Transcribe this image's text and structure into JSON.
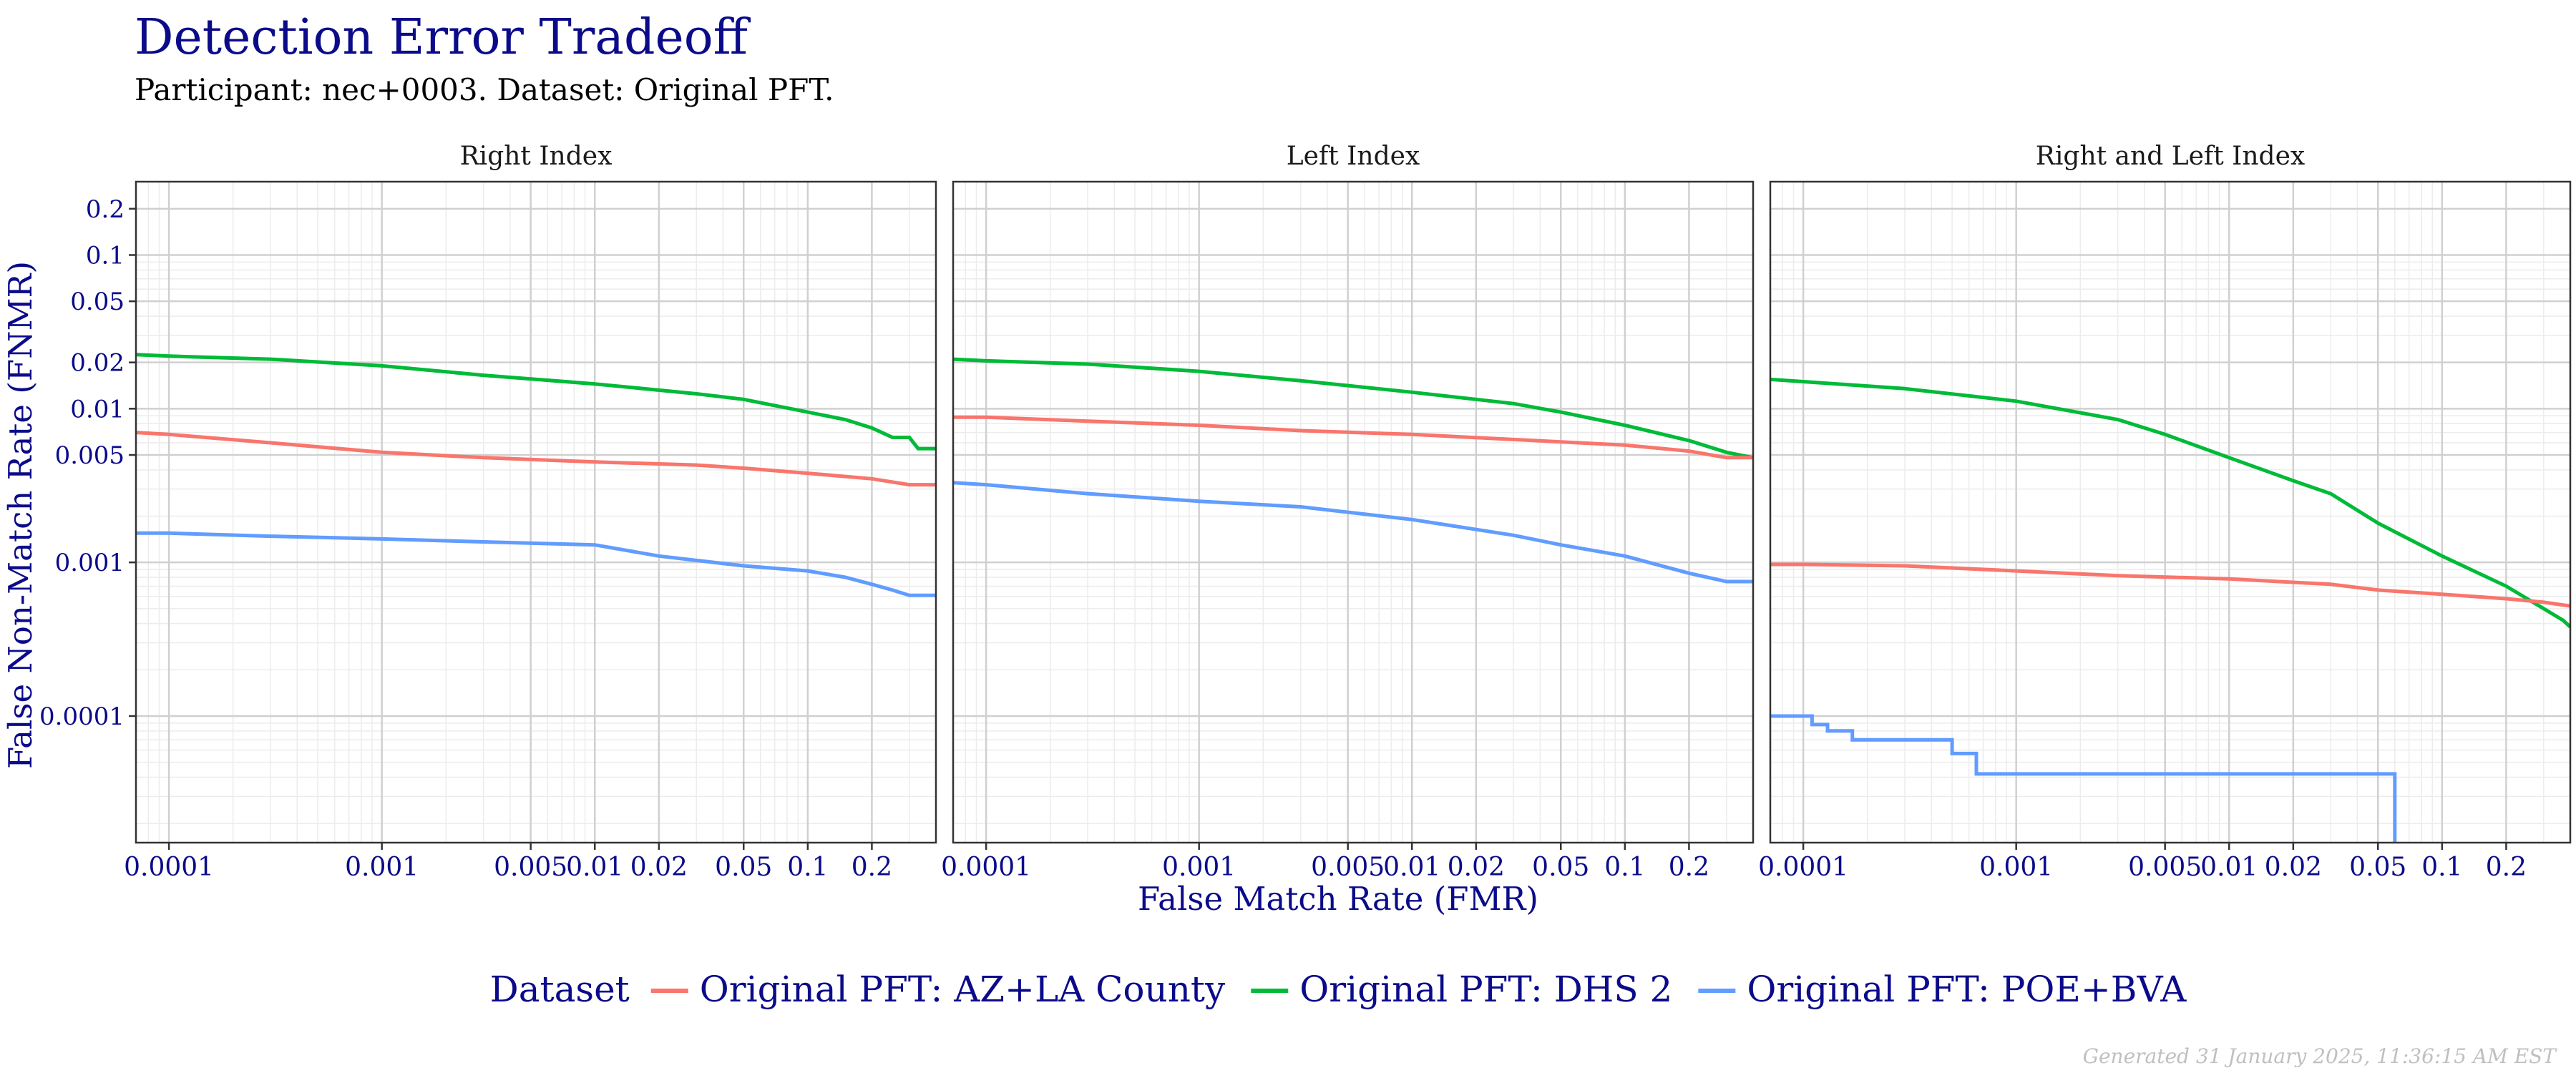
{
  "title": "Detection Error Tradeoff",
  "subtitle": "Participant: nec+0003. Dataset: Original PFT.",
  "footer": "Generated 31 January 2025, 11:36:15 AM EST",
  "colors": {
    "title": "#0b0b8a",
    "panel_border": "#333333",
    "grid_major": "#d0d0d0",
    "grid_minor": "#ececec"
  },
  "chart_data": {
    "type": "line",
    "x_scale": "log",
    "y_scale": "log",
    "xlabel": "False Match Rate (FMR)",
    "ylabel": "False Non-Match Rate (FNMR)",
    "xlim": [
      7e-05,
      0.4
    ],
    "ylim": [
      1.5e-05,
      0.3
    ],
    "x_ticks": [
      {
        "v": 0.0001,
        "label": "0.0001"
      },
      {
        "v": 0.001,
        "label": "0.001"
      },
      {
        "v": 0.005,
        "label": "0.005"
      },
      {
        "v": 0.01,
        "label": "0.01"
      },
      {
        "v": 0.02,
        "label": "0.02"
      },
      {
        "v": 0.05,
        "label": "0.05"
      },
      {
        "v": 0.1,
        "label": "0.1"
      },
      {
        "v": 0.2,
        "label": "0.2"
      }
    ],
    "y_ticks": [
      {
        "v": 0.0001,
        "label": "0.0001"
      },
      {
        "v": 0.001,
        "label": "0.001"
      },
      {
        "v": 0.005,
        "label": "0.005"
      },
      {
        "v": 0.01,
        "label": "0.01"
      },
      {
        "v": 0.02,
        "label": "0.02"
      },
      {
        "v": 0.05,
        "label": "0.05"
      },
      {
        "v": 0.1,
        "label": "0.1"
      },
      {
        "v": 0.2,
        "label": "0.2"
      }
    ],
    "legend": {
      "title": "Dataset",
      "position": "bottom",
      "items": [
        {
          "label": "Original PFT: AZ+LA County",
          "color": "#f8766d"
        },
        {
          "label": "Original PFT: DHS 2",
          "color": "#00ba38"
        },
        {
          "label": "Original PFT: POE+BVA",
          "color": "#619cff"
        }
      ]
    },
    "panels": [
      {
        "title": "Right Index",
        "series": [
          {
            "name": "Original PFT: DHS 2",
            "color": "#00ba38",
            "points": [
              [
                7e-05,
                0.0225
              ],
              [
                0.0001,
                0.022
              ],
              [
                0.0003,
                0.021
              ],
              [
                0.001,
                0.019
              ],
              [
                0.003,
                0.0165
              ],
              [
                0.01,
                0.0145
              ],
              [
                0.03,
                0.0125
              ],
              [
                0.05,
                0.0115
              ],
              [
                0.1,
                0.0095
              ],
              [
                0.15,
                0.0085
              ],
              [
                0.2,
                0.0075
              ],
              [
                0.25,
                0.0065
              ],
              [
                0.3,
                0.0065
              ],
              [
                0.33,
                0.0055
              ],
              [
                0.4,
                0.0055
              ]
            ]
          },
          {
            "name": "Original PFT: AZ+LA County",
            "color": "#f8766d",
            "points": [
              [
                7e-05,
                0.007
              ],
              [
                0.0001,
                0.0068
              ],
              [
                0.0003,
                0.006
              ],
              [
                0.001,
                0.0052
              ],
              [
                0.003,
                0.0048
              ],
              [
                0.01,
                0.0045
              ],
              [
                0.03,
                0.0043
              ],
              [
                0.05,
                0.0041
              ],
              [
                0.1,
                0.0038
              ],
              [
                0.2,
                0.0035
              ],
              [
                0.3,
                0.0032
              ],
              [
                0.4,
                0.0032
              ]
            ]
          },
          {
            "name": "Original PFT: POE+BVA",
            "color": "#619cff",
            "points": [
              [
                7e-05,
                0.00155
              ],
              [
                0.0001,
                0.00155
              ],
              [
                0.0003,
                0.00148
              ],
              [
                0.001,
                0.00142
              ],
              [
                0.003,
                0.00136
              ],
              [
                0.01,
                0.0013
              ],
              [
                0.02,
                0.0011
              ],
              [
                0.05,
                0.00095
              ],
              [
                0.1,
                0.00088
              ],
              [
                0.15,
                0.0008
              ],
              [
                0.2,
                0.00072
              ],
              [
                0.25,
                0.00066
              ],
              [
                0.3,
                0.00061
              ],
              [
                0.4,
                0.00061
              ]
            ]
          }
        ]
      },
      {
        "title": "Left Index",
        "series": [
          {
            "name": "Original PFT: DHS 2",
            "color": "#00ba38",
            "points": [
              [
                7e-05,
                0.021
              ],
              [
                0.0001,
                0.0205
              ],
              [
                0.0003,
                0.0195
              ],
              [
                0.001,
                0.0175
              ],
              [
                0.003,
                0.0152
              ],
              [
                0.01,
                0.0128
              ],
              [
                0.03,
                0.0108
              ],
              [
                0.05,
                0.0095
              ],
              [
                0.1,
                0.0078
              ],
              [
                0.2,
                0.0062
              ],
              [
                0.3,
                0.0052
              ],
              [
                0.4,
                0.0048
              ]
            ]
          },
          {
            "name": "Original PFT: AZ+LA County",
            "color": "#f8766d",
            "points": [
              [
                7e-05,
                0.0088
              ],
              [
                0.0001,
                0.0088
              ],
              [
                0.0003,
                0.0083
              ],
              [
                0.001,
                0.0078
              ],
              [
                0.003,
                0.0072
              ],
              [
                0.01,
                0.0068
              ],
              [
                0.03,
                0.0063
              ],
              [
                0.1,
                0.0058
              ],
              [
                0.2,
                0.0053
              ],
              [
                0.3,
                0.0048
              ],
              [
                0.4,
                0.0048
              ]
            ]
          },
          {
            "name": "Original PFT: POE+BVA",
            "color": "#619cff",
            "points": [
              [
                7e-05,
                0.0033
              ],
              [
                0.0001,
                0.0032
              ],
              [
                0.0003,
                0.0028
              ],
              [
                0.001,
                0.0025
              ],
              [
                0.003,
                0.0023
              ],
              [
                0.01,
                0.0019
              ],
              [
                0.03,
                0.0015
              ],
              [
                0.05,
                0.0013
              ],
              [
                0.1,
                0.0011
              ],
              [
                0.2,
                0.00085
              ],
              [
                0.3,
                0.00075
              ],
              [
                0.4,
                0.00075
              ]
            ]
          }
        ]
      },
      {
        "title": "Right and Left Index",
        "series": [
          {
            "name": "Original PFT: DHS 2",
            "color": "#00ba38",
            "points": [
              [
                7e-05,
                0.0155
              ],
              [
                0.0001,
                0.015
              ],
              [
                0.0003,
                0.0135
              ],
              [
                0.001,
                0.0112
              ],
              [
                0.003,
                0.0085
              ],
              [
                0.005,
                0.0068
              ],
              [
                0.01,
                0.0048
              ],
              [
                0.02,
                0.0034
              ],
              [
                0.03,
                0.0028
              ],
              [
                0.05,
                0.0018
              ],
              [
                0.1,
                0.0011
              ],
              [
                0.2,
                0.0007
              ],
              [
                0.3,
                0.0005
              ],
              [
                0.37,
                0.00042
              ],
              [
                0.4,
                0.00038
              ]
            ]
          },
          {
            "name": "Original PFT: AZ+LA County",
            "color": "#f8766d",
            "points": [
              [
                7e-05,
                0.00097
              ],
              [
                0.0001,
                0.00097
              ],
              [
                0.0003,
                0.00095
              ],
              [
                0.001,
                0.00088
              ],
              [
                0.003,
                0.00082
              ],
              [
                0.01,
                0.00078
              ],
              [
                0.03,
                0.00072
              ],
              [
                0.05,
                0.00066
              ],
              [
                0.1,
                0.00062
              ],
              [
                0.2,
                0.00058
              ],
              [
                0.3,
                0.00055
              ],
              [
                0.4,
                0.00052
              ]
            ]
          },
          {
            "name": "Original PFT: POE+BVA",
            "color": "#619cff",
            "points": [
              [
                7e-05,
                0.0001
              ],
              [
                0.00011,
                0.0001
              ],
              [
                0.00011,
                8.8e-05
              ],
              [
                0.00013,
                8.8e-05
              ],
              [
                0.00013,
                8e-05
              ],
              [
                0.00017,
                8e-05
              ],
              [
                0.00017,
                7e-05
              ],
              [
                0.0005,
                7e-05
              ],
              [
                0.0005,
                5.7e-05
              ],
              [
                0.00065,
                5.7e-05
              ],
              [
                0.00065,
                4.2e-05
              ],
              [
                0.06,
                4.2e-05
              ],
              [
                0.06,
                1.5e-05
              ]
            ]
          }
        ]
      }
    ]
  }
}
